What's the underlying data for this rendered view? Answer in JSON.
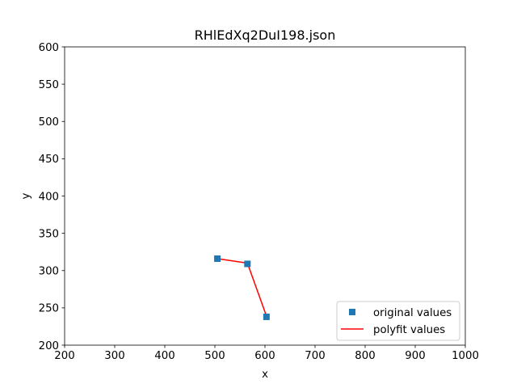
{
  "chart_data": {
    "type": "line",
    "title": "RHlEdXq2DuI198.json",
    "xlabel": "x",
    "ylabel": "y",
    "xlim": [
      200,
      1000
    ],
    "ylim": [
      200,
      600
    ],
    "xticks": [
      200,
      300,
      400,
      500,
      600,
      700,
      800,
      900,
      1000
    ],
    "yticks": [
      200,
      250,
      300,
      350,
      400,
      450,
      500,
      550,
      600
    ],
    "xtick_labels": [
      "200",
      "300",
      "400",
      "500",
      "600",
      "700",
      "800",
      "900",
      "1000"
    ],
    "ytick_labels": [
      "200",
      "250",
      "300",
      "350",
      "400",
      "450",
      "500",
      "550",
      "600"
    ],
    "grid": false,
    "legend_position": "lower right",
    "series": [
      {
        "name": "original values",
        "kind": "markers",
        "marker": "square",
        "color": "#1f77b4",
        "x": [
          505,
          565,
          603
        ],
        "y": [
          316,
          309,
          238
        ]
      },
      {
        "name": "polyfit values",
        "kind": "line",
        "color": "#ff0000",
        "x": [
          505,
          565,
          603
        ],
        "y": [
          316,
          310,
          239
        ]
      }
    ]
  }
}
